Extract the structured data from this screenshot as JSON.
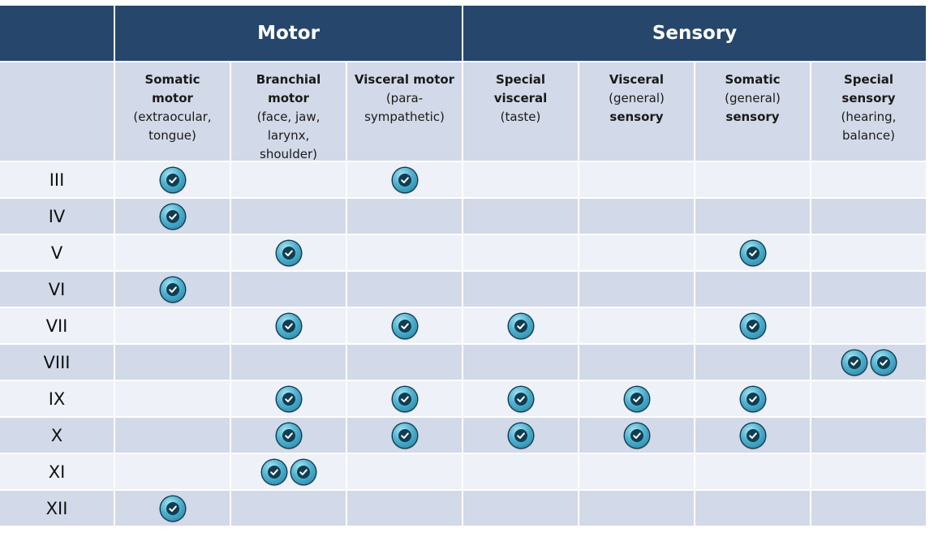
{
  "header": {
    "motor": "Motor",
    "sensory": "Sensory"
  },
  "columns": [
    {
      "bold": [
        "Somatic",
        "motor"
      ],
      "normal": [
        "(extraocular,",
        "tongue)"
      ],
      "order": "bn"
    },
    {
      "bold": [
        "Branchial",
        "motor"
      ],
      "normal": [
        "(face, jaw,",
        "larynx,",
        "shoulder)"
      ],
      "order": "bn"
    },
    {
      "bold": [
        "Visceral motor"
      ],
      "normal": [
        "(para-",
        "sympathetic)"
      ],
      "order": "bn"
    },
    {
      "bold": [
        "Special",
        "visceral"
      ],
      "normal": [
        "(taste)"
      ],
      "order": "bn"
    },
    {
      "bold": [
        "Visceral"
      ],
      "normal": [
        "(general)"
      ],
      "bold2": [
        "sensory"
      ],
      "order": "bnb"
    },
    {
      "bold": [
        "Somatic"
      ],
      "normal": [
        "(general)"
      ],
      "bold2": [
        "sensory"
      ],
      "order": "bnb"
    },
    {
      "bold": [
        "Special",
        "sensory"
      ],
      "normal": [
        "(hearing,",
        "balance)"
      ],
      "order": "bn"
    }
  ],
  "rows": [
    {
      "label": "III",
      "checks": [
        1,
        0,
        1,
        0,
        0,
        0,
        0
      ]
    },
    {
      "label": "IV",
      "checks": [
        1,
        0,
        0,
        0,
        0,
        0,
        0
      ]
    },
    {
      "label": "V",
      "checks": [
        0,
        1,
        0,
        0,
        0,
        1,
        0
      ]
    },
    {
      "label": "VI",
      "checks": [
        1,
        0,
        0,
        0,
        0,
        0,
        0
      ]
    },
    {
      "label": "VII",
      "checks": [
        0,
        1,
        1,
        1,
        0,
        1,
        0
      ]
    },
    {
      "label": "VIII",
      "checks": [
        0,
        0,
        0,
        0,
        0,
        0,
        2
      ]
    },
    {
      "label": "IX",
      "checks": [
        0,
        1,
        1,
        1,
        1,
        1,
        0
      ]
    },
    {
      "label": "X",
      "checks": [
        0,
        1,
        1,
        1,
        1,
        1,
        0
      ]
    },
    {
      "label": "XI",
      "checks": [
        0,
        2,
        0,
        0,
        0,
        0,
        0
      ]
    },
    {
      "label": "XII",
      "checks": [
        1,
        0,
        0,
        0,
        0,
        0,
        0
      ]
    }
  ],
  "colors": {
    "header_bg": "#26476b",
    "row_light": "#eef1f7",
    "row_dark": "#d2d9e8",
    "check": "#4fb1cf"
  },
  "icon": "checkmark-circle-icon"
}
